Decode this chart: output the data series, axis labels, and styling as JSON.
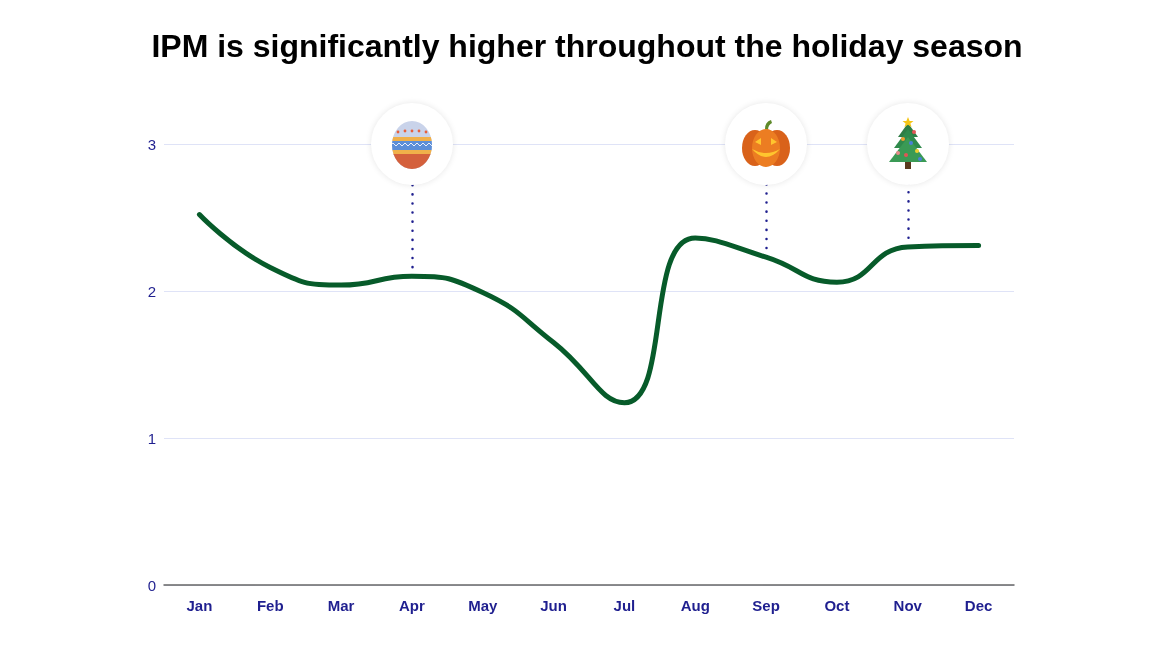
{
  "chart_data": {
    "type": "line",
    "title": "IPM is significantly higher throughout the holiday season",
    "categories": [
      "Jan",
      "Feb",
      "Mar",
      "Apr",
      "May",
      "Jun",
      "Jul",
      "Aug",
      "Sep",
      "Oct",
      "Nov",
      "Dec"
    ],
    "values": [
      2.52,
      2.16,
      2.04,
      2.1,
      1.99,
      1.65,
      1.24,
      2.36,
      2.23,
      2.06,
      2.3,
      2.31
    ],
    "color": "#075b2a",
    "ylim": [
      0,
      3
    ],
    "yticks": [
      0,
      1,
      2,
      3
    ],
    "grid": "y",
    "marker": "none",
    "ref_lines": [
      {
        "axis": "x",
        "value": "Apr",
        "color": "#1f1f8f",
        "line_style": "dotted"
      },
      {
        "axis": "x",
        "value": "Sep",
        "color": "#1f1f8f",
        "line_style": "dotted"
      },
      {
        "axis": "x",
        "value": "Nov",
        "color": "#1f1f8f",
        "line_style": "dotted"
      }
    ]
  }
}
